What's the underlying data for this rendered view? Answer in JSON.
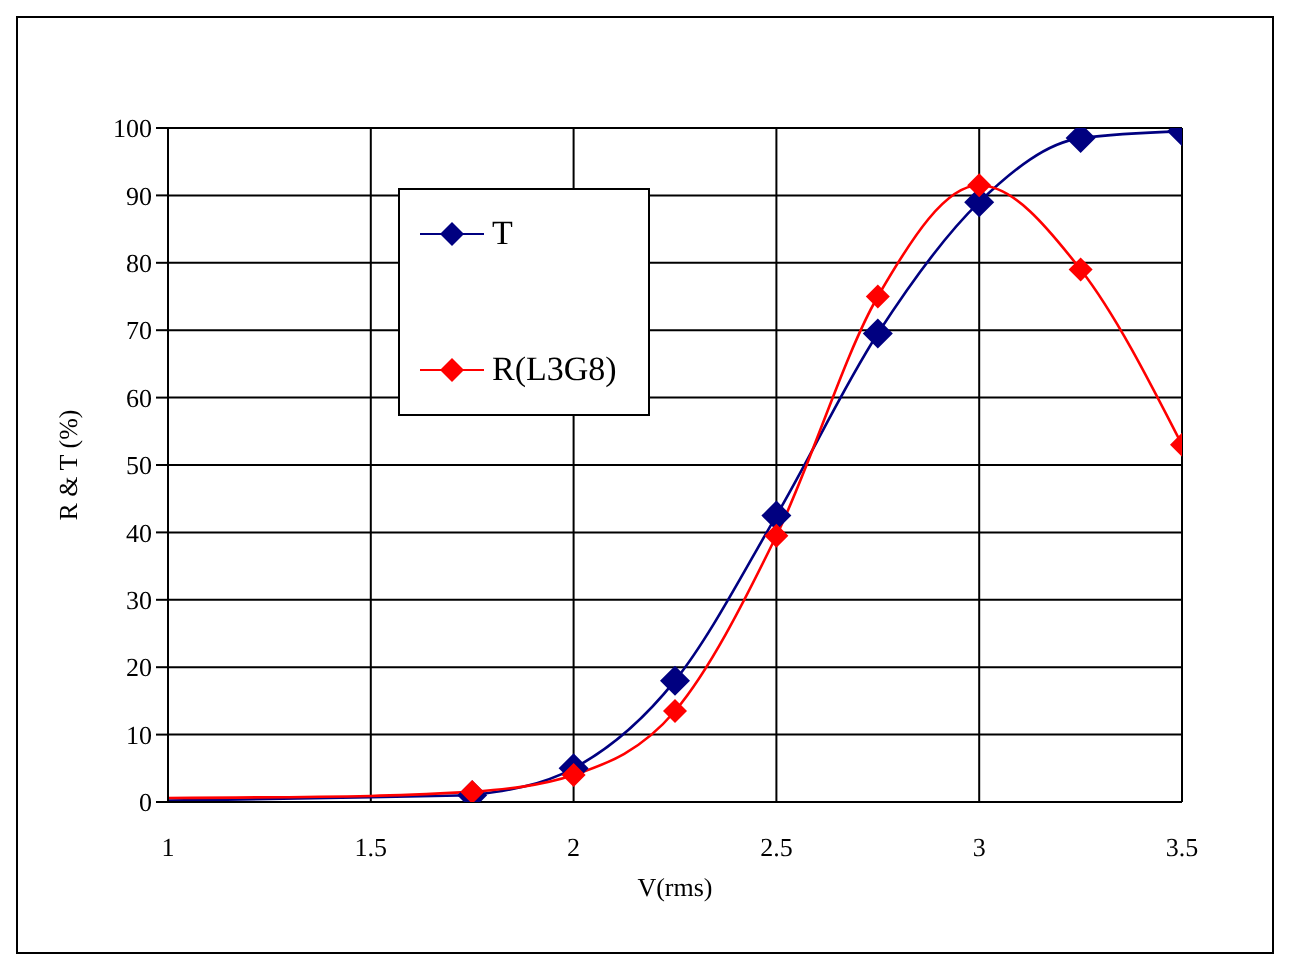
{
  "chart_data": {
    "type": "line",
    "xlabel": "V(rms)",
    "ylabel": "R & T (%)",
    "xlim": [
      1,
      3.5
    ],
    "xticks": [
      1,
      1.5,
      2,
      2.5,
      3,
      3.5
    ],
    "ylim": [
      0,
      100
    ],
    "yticks": [
      0,
      10,
      20,
      30,
      40,
      50,
      60,
      70,
      80,
      90,
      100
    ],
    "grid": true,
    "legend": "top left",
    "marker": "diamond",
    "series": [
      {
        "name": "T",
        "color": "#000080",
        "x": [
          1.75,
          2,
          2.25,
          2.5,
          2.75,
          3,
          3.25,
          3.5
        ],
        "values": [
          1,
          5,
          18,
          42.5,
          69.5,
          89,
          98.5,
          99.5
        ]
      },
      {
        "name": "R(L3G8)",
        "color": "#ff0000",
        "x": [
          1.75,
          2,
          2.25,
          2.5,
          2.75,
          3,
          3.25,
          3.5
        ],
        "values": [
          1.5,
          4,
          13.5,
          39.5,
          75,
          91.5,
          79,
          53
        ]
      },
      {
        "color": "#000080",
        "marker": "none",
        "x": [
          1,
          1.5,
          1.75
        ],
        "values": [
          0.2,
          0.7,
          1
        ]
      },
      {
        "color": "#ff0000",
        "marker": "none",
        "x": [
          1,
          1.5,
          1.75
        ],
        "values": [
          0.6,
          0.9,
          1.5
        ]
      }
    ]
  }
}
